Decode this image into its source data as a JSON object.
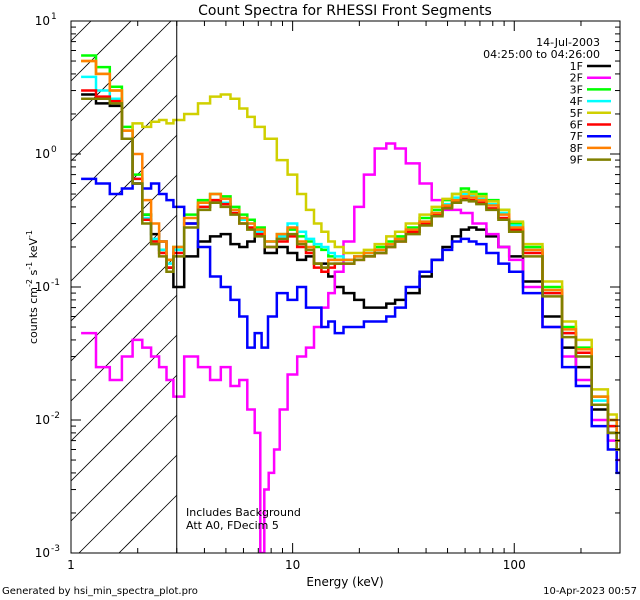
{
  "chart_data": {
    "type": "line",
    "title": "Count Spectra for RHESSI Front Segments",
    "xlabel": "Energy (keV)",
    "ylabel": "counts cm-2 s-1 keV-1",
    "ylabel_parts": {
      "base": "counts cm",
      "e1": "-2",
      "mid1": " s",
      "e2": "-1",
      "mid2": " keV",
      "e3": "-1"
    },
    "xscale": "log",
    "yscale": "log",
    "xlim": [
      1,
      300
    ],
    "ylim": [
      0.001,
      10
    ],
    "x_ticks": [
      {
        "v": 1,
        "label": "1"
      },
      {
        "v": 10,
        "label": "10"
      },
      {
        "v": 100,
        "label": "100"
      }
    ],
    "y_ticks": [
      {
        "v": 10,
        "base": "10",
        "exp": "1"
      },
      {
        "v": 1,
        "base": "10",
        "exp": "0"
      },
      {
        "v": 0.1,
        "base": "10",
        "exp": "-1"
      },
      {
        "v": 0.01,
        "base": "10",
        "exp": "-2"
      },
      {
        "v": 0.001,
        "base": "10",
        "exp": "-3"
      }
    ],
    "date": "14-Jul-2003",
    "time_range": "04:25:00 to 04:26:00",
    "annotations": [
      "Includes Background",
      "Att A0, FDecim 5"
    ],
    "excluded_region": [
      1,
      3
    ],
    "footer_left": "Generated by hsi_min_spectra_plot.pro",
    "footer_right": "10-Apr-2023 00:57",
    "legend_position": "top-right",
    "series": [
      {
        "name": "1F",
        "color": "#000000",
        "x": [
          1.2,
          1.4,
          1.6,
          1.8,
          2.0,
          2.2,
          2.4,
          2.6,
          2.8,
          3.0,
          3.5,
          4.0,
          4.5,
          5.0,
          5.5,
          6.0,
          6.5,
          7.0,
          8,
          9,
          10,
          11,
          12,
          13,
          14,
          15,
          16,
          18,
          20,
          22,
          25,
          28,
          30,
          35,
          40,
          45,
          50,
          55,
          60,
          65,
          70,
          80,
          90,
          100,
          120,
          150,
          180,
          200,
          250,
          280,
          300
        ],
        "y": [
          2.8,
          2.4,
          2.3,
          1.3,
          0.6,
          0.35,
          0.25,
          0.22,
          0.14,
          0.1,
          0.17,
          0.22,
          0.24,
          0.25,
          0.21,
          0.2,
          0.22,
          0.25,
          0.18,
          0.2,
          0.18,
          0.16,
          0.17,
          0.15,
          0.15,
          0.12,
          0.1,
          0.09,
          0.08,
          0.07,
          0.07,
          0.075,
          0.08,
          0.09,
          0.12,
          0.16,
          0.2,
          0.24,
          0.27,
          0.28,
          0.27,
          0.24,
          0.2,
          0.17,
          0.11,
          0.06,
          0.035,
          0.025,
          0.012,
          0.008,
          0.006
        ]
      },
      {
        "name": "2F",
        "color": "#ff00ff",
        "x": [
          1.2,
          1.4,
          1.6,
          1.8,
          2.0,
          2.2,
          2.4,
          2.6,
          2.8,
          3.0,
          3.5,
          4.0,
          4.5,
          5.0,
          5.5,
          6.0,
          6.5,
          7.0,
          7.3,
          7.6,
          8,
          8.5,
          9,
          10,
          11,
          12,
          13,
          14,
          15,
          16,
          18,
          20,
          22,
          25,
          28,
          30,
          35,
          40,
          45,
          50,
          55,
          60,
          70,
          80,
          90,
          100,
          120,
          150,
          180,
          200,
          250,
          280,
          300
        ],
        "y": [
          0.045,
          0.025,
          0.02,
          0.03,
          0.04,
          0.035,
          0.03,
          0.025,
          0.02,
          0.015,
          0.03,
          0.025,
          0.02,
          0.025,
          0.018,
          0.02,
          0.012,
          0.008,
          0.001,
          0.003,
          0.004,
          0.006,
          0.012,
          0.022,
          0.03,
          0.035,
          0.05,
          0.07,
          0.09,
          0.13,
          0.22,
          0.4,
          0.7,
          1.1,
          1.2,
          1.1,
          0.85,
          0.6,
          0.45,
          0.38,
          0.38,
          0.36,
          0.3,
          0.25,
          0.2,
          0.16,
          0.1,
          0.05,
          0.03,
          0.02,
          0.01,
          0.007,
          0.005
        ]
      },
      {
        "name": "3F",
        "color": "#00ff00",
        "x": [
          1.2,
          1.4,
          1.6,
          1.8,
          2.0,
          2.2,
          2.4,
          2.6,
          2.8,
          3.0,
          3.5,
          4.0,
          4.5,
          5.0,
          5.5,
          6.0,
          6.5,
          7.0,
          8,
          9,
          10,
          11,
          12,
          13,
          14,
          15,
          16,
          18,
          20,
          22,
          25,
          28,
          30,
          35,
          40,
          45,
          50,
          55,
          60,
          65,
          70,
          80,
          90,
          100,
          120,
          150,
          180,
          200,
          250,
          280,
          300
        ],
        "y": [
          5.5,
          4.5,
          3.2,
          1.6,
          0.7,
          0.35,
          0.22,
          0.19,
          0.16,
          0.2,
          0.35,
          0.45,
          0.5,
          0.48,
          0.4,
          0.35,
          0.32,
          0.28,
          0.22,
          0.25,
          0.27,
          0.24,
          0.22,
          0.2,
          0.19,
          0.17,
          0.16,
          0.16,
          0.17,
          0.18,
          0.2,
          0.22,
          0.24,
          0.28,
          0.33,
          0.38,
          0.45,
          0.5,
          0.55,
          0.52,
          0.5,
          0.45,
          0.38,
          0.3,
          0.2,
          0.1,
          0.05,
          0.035,
          0.015,
          0.01,
          0.007
        ]
      },
      {
        "name": "4F",
        "color": "#00ffff",
        "x": [
          1.2,
          1.4,
          1.6,
          1.8,
          2.0,
          2.2,
          2.4,
          2.6,
          2.8,
          3.0,
          3.5,
          4.0,
          4.5,
          5.0,
          5.5,
          6.0,
          6.5,
          7.0,
          8,
          9,
          10,
          11,
          12,
          13,
          14,
          15,
          16,
          18,
          20,
          22,
          25,
          28,
          30,
          35,
          40,
          45,
          50,
          55,
          60,
          65,
          70,
          80,
          90,
          100,
          120,
          150,
          180,
          200,
          250,
          280,
          300
        ],
        "y": [
          3.8,
          3.0,
          2.6,
          1.3,
          0.65,
          0.33,
          0.23,
          0.19,
          0.15,
          0.19,
          0.3,
          0.4,
          0.45,
          0.43,
          0.38,
          0.32,
          0.3,
          0.26,
          0.22,
          0.24,
          0.3,
          0.26,
          0.23,
          0.21,
          0.2,
          0.18,
          0.17,
          0.16,
          0.17,
          0.18,
          0.19,
          0.21,
          0.23,
          0.27,
          0.31,
          0.36,
          0.42,
          0.47,
          0.5,
          0.49,
          0.46,
          0.42,
          0.36,
          0.29,
          0.19,
          0.09,
          0.045,
          0.032,
          0.014,
          0.009,
          0.006
        ]
      },
      {
        "name": "5F",
        "color": "#d0d000",
        "x": [
          1.2,
          1.4,
          1.6,
          1.8,
          2.0,
          2.2,
          2.4,
          2.6,
          2.8,
          3.0,
          3.5,
          4.0,
          4.5,
          5.0,
          5.5,
          6.0,
          6.5,
          7.0,
          8,
          9,
          10,
          11,
          12,
          13,
          14,
          15,
          16,
          18,
          20,
          22,
          25,
          28,
          30,
          35,
          40,
          45,
          50,
          55,
          60,
          65,
          70,
          80,
          90,
          100,
          120,
          150,
          180,
          200,
          250,
          280,
          300
        ],
        "y": [
          5.0,
          4.0,
          3.0,
          1.5,
          1.7,
          1.6,
          1.75,
          1.8,
          1.7,
          1.8,
          2.0,
          2.4,
          2.7,
          2.8,
          2.6,
          2.2,
          1.9,
          1.6,
          1.3,
          0.9,
          0.7,
          0.5,
          0.38,
          0.3,
          0.26,
          0.22,
          0.2,
          0.18,
          0.18,
          0.19,
          0.21,
          0.24,
          0.26,
          0.3,
          0.35,
          0.4,
          0.46,
          0.5,
          0.52,
          0.5,
          0.48,
          0.44,
          0.38,
          0.31,
          0.21,
          0.11,
          0.055,
          0.04,
          0.017,
          0.011,
          0.008
        ]
      },
      {
        "name": "6F",
        "color": "#ff0000",
        "x": [
          1.2,
          1.4,
          1.6,
          1.8,
          2.0,
          2.2,
          2.4,
          2.6,
          2.8,
          3.0,
          3.5,
          4.0,
          4.5,
          5.0,
          5.5,
          6.0,
          6.5,
          7.0,
          8,
          9,
          10,
          11,
          12,
          13,
          14,
          15,
          16,
          18,
          20,
          22,
          25,
          28,
          30,
          35,
          40,
          45,
          50,
          55,
          60,
          65,
          70,
          80,
          90,
          100,
          120,
          150,
          180,
          200,
          250,
          280,
          300
        ],
        "y": [
          3.0,
          2.7,
          2.5,
          1.3,
          0.65,
          0.32,
          0.22,
          0.18,
          0.14,
          0.18,
          0.3,
          0.4,
          0.45,
          0.42,
          0.36,
          0.3,
          0.28,
          0.25,
          0.2,
          0.22,
          0.24,
          0.2,
          0.18,
          0.14,
          0.13,
          0.14,
          0.15,
          0.15,
          0.16,
          0.17,
          0.18,
          0.2,
          0.22,
          0.26,
          0.3,
          0.35,
          0.4,
          0.44,
          0.46,
          0.45,
          0.43,
          0.39,
          0.33,
          0.27,
          0.18,
          0.09,
          0.045,
          0.032,
          0.013,
          0.009,
          0.006
        ]
      },
      {
        "name": "7F",
        "color": "#0000ff",
        "x": [
          1.2,
          1.4,
          1.6,
          1.8,
          2.0,
          2.2,
          2.4,
          2.6,
          2.8,
          3.0,
          3.5,
          4.0,
          4.5,
          5.0,
          5.5,
          6.0,
          6.5,
          7.0,
          7.5,
          8,
          9,
          10,
          11,
          12,
          13,
          14,
          15,
          16,
          18,
          20,
          22,
          25,
          28,
          30,
          35,
          40,
          45,
          50,
          55,
          60,
          65,
          70,
          80,
          90,
          100,
          120,
          150,
          180,
          200,
          250,
          280,
          300
        ],
        "y": [
          0.65,
          0.6,
          0.5,
          0.55,
          0.6,
          0.55,
          0.6,
          0.5,
          0.45,
          0.4,
          0.3,
          0.2,
          0.12,
          0.1,
          0.08,
          0.06,
          0.035,
          0.045,
          0.035,
          0.06,
          0.09,
          0.08,
          0.1,
          0.07,
          0.07,
          0.05,
          0.055,
          0.045,
          0.05,
          0.05,
          0.055,
          0.055,
          0.06,
          0.07,
          0.1,
          0.13,
          0.16,
          0.19,
          0.22,
          0.23,
          0.22,
          0.21,
          0.18,
          0.15,
          0.13,
          0.09,
          0.05,
          0.025,
          0.018,
          0.009,
          0.006,
          0.004
        ]
      },
      {
        "name": "8F",
        "color": "#ff8000",
        "x": [
          1.2,
          1.4,
          1.6,
          1.8,
          2.0,
          2.2,
          2.4,
          2.6,
          2.8,
          3.0,
          3.5,
          4.0,
          4.5,
          5.0,
          5.5,
          6.0,
          6.5,
          7.0,
          8,
          9,
          10,
          11,
          12,
          13,
          14,
          15,
          16,
          18,
          20,
          22,
          25,
          28,
          30,
          35,
          40,
          45,
          50,
          55,
          60,
          65,
          70,
          80,
          90,
          100,
          120,
          150,
          180,
          200,
          250,
          280,
          300
        ],
        "y": [
          5.0,
          4.0,
          3.0,
          1.5,
          1.0,
          0.45,
          0.3,
          0.22,
          0.16,
          0.2,
          0.33,
          0.43,
          0.5,
          0.46,
          0.38,
          0.33,
          0.3,
          0.27,
          0.22,
          0.25,
          0.28,
          0.22,
          0.2,
          0.15,
          0.14,
          0.16,
          0.16,
          0.16,
          0.17,
          0.18,
          0.19,
          0.21,
          0.23,
          0.27,
          0.31,
          0.36,
          0.41,
          0.45,
          0.48,
          0.47,
          0.45,
          0.41,
          0.35,
          0.28,
          0.19,
          0.095,
          0.048,
          0.034,
          0.015,
          0.01,
          0.007
        ]
      },
      {
        "name": "9F",
        "color": "#808000",
        "x": [
          1.2,
          1.4,
          1.6,
          1.8,
          2.0,
          2.2,
          2.4,
          2.6,
          2.8,
          3.0,
          3.5,
          4.0,
          4.5,
          5.0,
          5.5,
          6.0,
          6.5,
          7.0,
          8,
          9,
          10,
          11,
          12,
          13,
          14,
          15,
          16,
          18,
          20,
          22,
          25,
          28,
          30,
          35,
          40,
          45,
          50,
          55,
          60,
          65,
          70,
          80,
          90,
          100,
          120,
          150,
          180,
          200,
          250,
          280,
          300
        ],
        "y": [
          2.6,
          2.6,
          2.4,
          1.3,
          0.6,
          0.3,
          0.21,
          0.17,
          0.13,
          0.17,
          0.28,
          0.38,
          0.43,
          0.4,
          0.35,
          0.3,
          0.27,
          0.24,
          0.2,
          0.23,
          0.25,
          0.21,
          0.19,
          0.15,
          0.14,
          0.15,
          0.15,
          0.15,
          0.16,
          0.17,
          0.18,
          0.2,
          0.22,
          0.25,
          0.29,
          0.34,
          0.39,
          0.43,
          0.45,
          0.44,
          0.42,
          0.38,
          0.32,
          0.26,
          0.17,
          0.085,
          0.042,
          0.03,
          0.013,
          0.008,
          0.006
        ]
      }
    ]
  }
}
